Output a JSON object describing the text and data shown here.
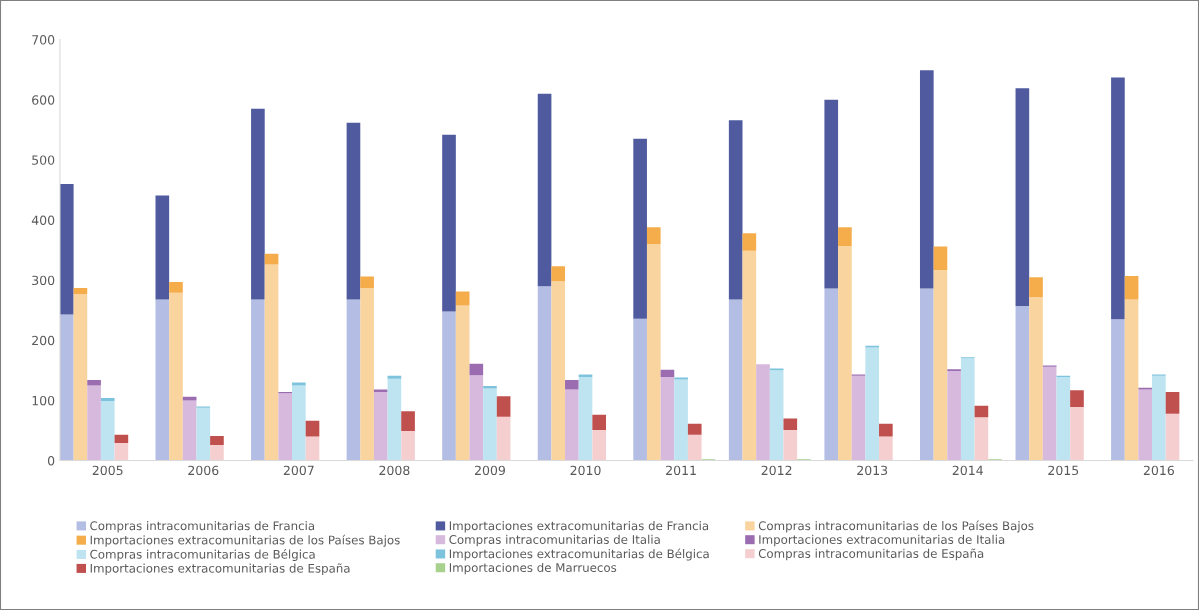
{
  "chart_data": {
    "type": "bar",
    "stacked": true,
    "categories": [
      null,
      null,
      null,
      "2005",
      null,
      null,
      null,
      null,
      null,
      null,
      "2006",
      null,
      null,
      null,
      null,
      null,
      null,
      "2007",
      null,
      null,
      null,
      null,
      null,
      null,
      "2008",
      null,
      null,
      null,
      null,
      null,
      null,
      "2009",
      null,
      null,
      null,
      null,
      null,
      null,
      "2010",
      null,
      null,
      null,
      null,
      null,
      null,
      "2011",
      null,
      null,
      null,
      null,
      null,
      null,
      "2012",
      null,
      null,
      null,
      null,
      null,
      null,
      "2013",
      null,
      null,
      null,
      null,
      null,
      null,
      "2014",
      null,
      null,
      null,
      null,
      null,
      null,
      "2015",
      null,
      null,
      null,
      null,
      null,
      null,
      "2016",
      null,
      null
    ],
    "ylim": [
      0,
      700
    ],
    "yticks": [
      0,
      100,
      200,
      300,
      400,
      500,
      600,
      700
    ],
    "grid": false,
    "legend": "bottom",
    "series": [
      {
        "name": "Compras intracomunitarias de Francia",
        "color": "#b4bde3",
        "values": [
          243,
          null,
          null,
          null,
          null,
          null,
          null,
          268,
          null,
          null,
          null,
          null,
          null,
          null,
          268,
          null,
          null,
          null,
          null,
          null,
          null,
          268,
          null,
          null,
          null,
          null,
          null,
          null,
          248,
          null,
          null,
          null,
          null,
          null,
          null,
          290,
          null,
          null,
          null,
          null,
          null,
          null,
          236,
          null,
          null,
          null,
          null,
          null,
          null,
          268,
          null,
          null,
          null,
          null,
          null,
          null,
          286,
          null,
          null,
          null,
          null,
          null,
          null,
          286,
          null,
          null,
          null,
          null,
          null,
          null,
          257,
          null,
          null,
          null,
          null,
          null,
          null,
          235,
          null,
          null,
          null,
          null,
          null
        ]
      },
      {
        "name": "Importaciones extracomunitarias de Francia",
        "color": "#4f5b9e",
        "values": [
          217,
          null,
          null,
          null,
          null,
          null,
          null,
          173,
          null,
          null,
          null,
          null,
          null,
          null,
          317,
          null,
          null,
          null,
          null,
          null,
          null,
          294,
          null,
          null,
          null,
          null,
          null,
          null,
          294,
          null,
          null,
          null,
          null,
          null,
          null,
          320,
          null,
          null,
          null,
          null,
          null,
          null,
          299,
          null,
          null,
          null,
          null,
          null,
          null,
          298,
          null,
          null,
          null,
          null,
          null,
          null,
          314,
          null,
          null,
          null,
          null,
          null,
          null,
          363,
          null,
          null,
          null,
          null,
          null,
          null,
          362,
          null,
          null,
          null,
          null,
          null,
          null,
          402,
          null,
          null,
          null,
          null,
          null
        ]
      },
      {
        "name": "Compras intracomunitarias de los Países Bajos",
        "color": "#f9d49f",
        "values": [
          null,
          277,
          null,
          null,
          null,
          null,
          null,
          null,
          279,
          null,
          null,
          null,
          null,
          null,
          null,
          326,
          null,
          null,
          null,
          null,
          null,
          null,
          287,
          null,
          null,
          null,
          null,
          null,
          null,
          258,
          null,
          null,
          null,
          null,
          null,
          null,
          298,
          null,
          null,
          null,
          null,
          null,
          null,
          360,
          null,
          null,
          null,
          null,
          null,
          null,
          349,
          null,
          null,
          null,
          null,
          null,
          null,
          357,
          null,
          null,
          null,
          null,
          null,
          null,
          317,
          null,
          null,
          null,
          null,
          null,
          null,
          272,
          null,
          null,
          null,
          null,
          null,
          null,
          268,
          null,
          null,
          null,
          null
        ]
      },
      {
        "name": "Importaciones extracomunitarias de los Países Bajos",
        "color": "#f5ac4a",
        "values": [
          null,
          10,
          null,
          null,
          null,
          null,
          null,
          null,
          18,
          null,
          null,
          null,
          null,
          null,
          null,
          18,
          null,
          null,
          null,
          null,
          null,
          null,
          19,
          null,
          null,
          null,
          null,
          null,
          null,
          23,
          null,
          null,
          null,
          null,
          null,
          null,
          25,
          null,
          null,
          null,
          null,
          null,
          null,
          28,
          null,
          null,
          null,
          null,
          null,
          null,
          29,
          null,
          null,
          null,
          null,
          null,
          null,
          31,
          null,
          null,
          null,
          null,
          null,
          null,
          39,
          null,
          null,
          null,
          null,
          null,
          null,
          33,
          null,
          null,
          null,
          null,
          null,
          null,
          39,
          null,
          null,
          null,
          null
        ]
      },
      {
        "name": "Compras intracomunitarias de Italia",
        "color": "#d6b9dc",
        "values": [
          null,
          null,
          125,
          null,
          null,
          null,
          null,
          null,
          null,
          100,
          null,
          null,
          null,
          null,
          null,
          null,
          112,
          null,
          null,
          null,
          null,
          null,
          null,
          114,
          null,
          null,
          null,
          null,
          null,
          null,
          142,
          null,
          null,
          null,
          null,
          null,
          null,
          118,
          null,
          null,
          null,
          null,
          null,
          null,
          139,
          null,
          null,
          null,
          null,
          null,
          null,
          160,
          null,
          null,
          null,
          null,
          null,
          null,
          141,
          null,
          null,
          null,
          null,
          null,
          null,
          149,
          null,
          null,
          null,
          null,
          null,
          null,
          156,
          null,
          null,
          null,
          null,
          null,
          null,
          118,
          null,
          null,
          null
        ]
      },
      {
        "name": "Importaciones extracomunitarias de Italia",
        "color": "#9b6db0",
        "values": [
          null,
          null,
          9,
          null,
          null,
          null,
          null,
          null,
          null,
          6,
          null,
          null,
          null,
          null,
          null,
          null,
          2,
          null,
          null,
          null,
          null,
          null,
          null,
          4,
          null,
          null,
          null,
          null,
          null,
          null,
          19,
          null,
          null,
          null,
          null,
          null,
          null,
          16,
          null,
          null,
          null,
          null,
          null,
          null,
          12,
          null,
          null,
          null,
          null,
          null,
          null,
          null,
          null,
          null,
          null,
          null,
          null,
          null,
          2,
          null,
          null,
          null,
          null,
          null,
          null,
          3,
          null,
          null,
          null,
          null,
          null,
          null,
          2,
          null,
          null,
          null,
          null,
          null,
          null,
          3,
          null,
          null,
          null
        ]
      },
      {
        "name": "Compras intracomunitarias de Bélgica",
        "color": "#bde4f0",
        "values": [
          null,
          null,
          null,
          99,
          null,
          null,
          null,
          null,
          null,
          null,
          88,
          null,
          null,
          null,
          null,
          null,
          null,
          125,
          null,
          null,
          null,
          null,
          null,
          null,
          136,
          null,
          null,
          null,
          null,
          null,
          null,
          120,
          null,
          null,
          null,
          null,
          null,
          null,
          139,
          null,
          null,
          null,
          null,
          null,
          null,
          135,
          null,
          null,
          null,
          null,
          null,
          null,
          150,
          null,
          null,
          null,
          null,
          null,
          null,
          188,
          null,
          null,
          null,
          null,
          null,
          null,
          170,
          null,
          null,
          null,
          null,
          null,
          null,
          139,
          null,
          null,
          null,
          null,
          null,
          null,
          141,
          null,
          null
        ]
      },
      {
        "name": "Importaciones extracomunitarias de Bélgica",
        "color": "#7ec3dd",
        "values": [
          null,
          null,
          null,
          5,
          null,
          null,
          null,
          null,
          null,
          null,
          2,
          null,
          null,
          null,
          null,
          null,
          null,
          5,
          null,
          null,
          null,
          null,
          null,
          null,
          5,
          null,
          null,
          null,
          null,
          null,
          null,
          4,
          null,
          null,
          null,
          null,
          null,
          null,
          4,
          null,
          null,
          null,
          null,
          null,
          null,
          3,
          null,
          null,
          null,
          null,
          null,
          null,
          3,
          null,
          null,
          null,
          null,
          null,
          null,
          3,
          null,
          null,
          null,
          null,
          null,
          null,
          2,
          null,
          null,
          null,
          null,
          null,
          null,
          2,
          null,
          null,
          null,
          null,
          null,
          null,
          2,
          null,
          null
        ]
      },
      {
        "name": "Compras intracomunitarias de España",
        "color": "#f5cfd0",
        "values": [
          null,
          null,
          null,
          null,
          29,
          null,
          null,
          null,
          null,
          null,
          null,
          26,
          null,
          null,
          null,
          null,
          null,
          null,
          40,
          null,
          null,
          null,
          null,
          null,
          null,
          49,
          null,
          null,
          null,
          null,
          null,
          null,
          73,
          null,
          null,
          null,
          null,
          null,
          null,
          51,
          null,
          null,
          null,
          null,
          null,
          null,
          43,
          null,
          null,
          null,
          null,
          null,
          null,
          51,
          null,
          null,
          null,
          null,
          null,
          null,
          40,
          null,
          null,
          null,
          null,
          null,
          null,
          72,
          null,
          null,
          null,
          null,
          null,
          null,
          89,
          null,
          null,
          null,
          null,
          null,
          null,
          78,
          null
        ]
      },
      {
        "name": "Importaciones extracomunitarias de España",
        "color": "#c0504d",
        "values": [
          null,
          null,
          null,
          null,
          14,
          null,
          null,
          null,
          null,
          null,
          null,
          15,
          null,
          null,
          null,
          null,
          null,
          null,
          26,
          null,
          null,
          null,
          null,
          null,
          null,
          33,
          null,
          null,
          null,
          null,
          null,
          null,
          34,
          null,
          null,
          null,
          null,
          null,
          null,
          25,
          null,
          null,
          null,
          null,
          null,
          null,
          18,
          null,
          null,
          null,
          null,
          null,
          null,
          19,
          null,
          null,
          null,
          null,
          null,
          null,
          21,
          null,
          null,
          null,
          null,
          null,
          null,
          19,
          null,
          null,
          null,
          null,
          null,
          null,
          28,
          null,
          null,
          null,
          null,
          null,
          null,
          36,
          null
        ]
      },
      {
        "name": "Importaciones de Marruecos",
        "color": "#a9d18e",
        "values": [
          null,
          null,
          null,
          null,
          null,
          null,
          null,
          null,
          null,
          null,
          null,
          null,
          null,
          null,
          null,
          null,
          null,
          null,
          null,
          null,
          null,
          null,
          null,
          null,
          null,
          null,
          null,
          null,
          null,
          null,
          null,
          null,
          null,
          null,
          null,
          null,
          null,
          null,
          null,
          null,
          null,
          null,
          null,
          null,
          null,
          null,
          null,
          2,
          null,
          null,
          null,
          null,
          null,
          null,
          2,
          null,
          null,
          null,
          null,
          null,
          null,
          null,
          null,
          null,
          null,
          null,
          null,
          null,
          2,
          null,
          null,
          null,
          null,
          null,
          null,
          null,
          null,
          null,
          null,
          null,
          null,
          null,
          null
        ]
      }
    ]
  }
}
